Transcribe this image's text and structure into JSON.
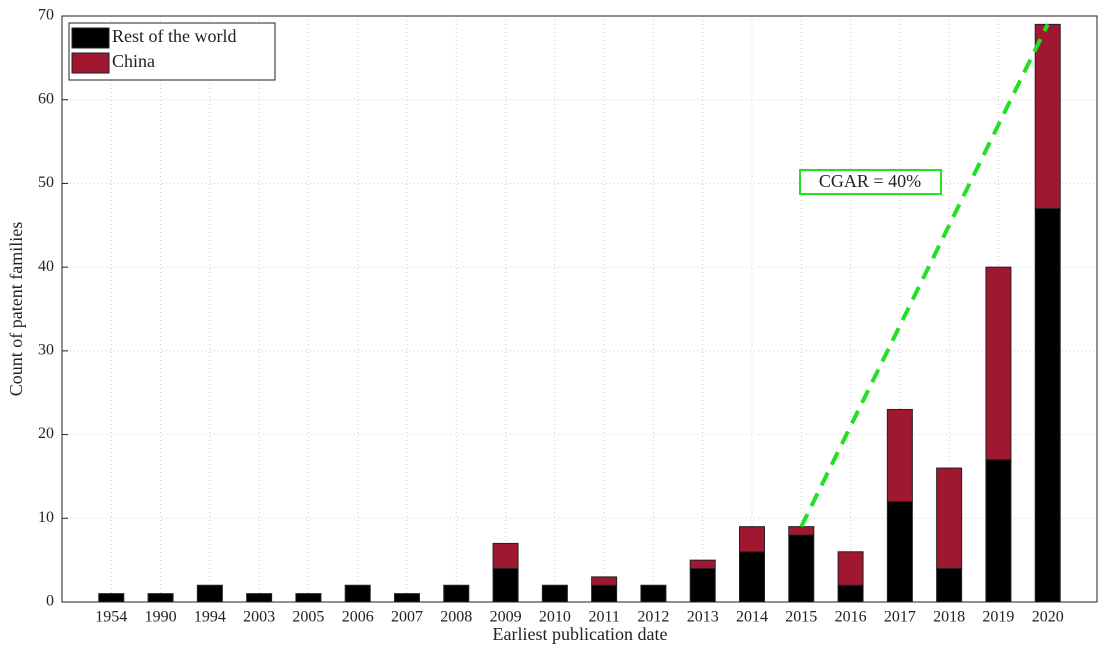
{
  "chart_data": {
    "type": "bar",
    "stacked": true,
    "x_label": "Earliest publication date",
    "y_label": "Count of patent families",
    "categories": [
      "1954",
      "1990",
      "1994",
      "2003",
      "2005",
      "2006",
      "2007",
      "2008",
      "2009",
      "2010",
      "2011",
      "2012",
      "2013",
      "2014",
      "2015",
      "2016",
      "2017",
      "2018",
      "2019",
      "2020"
    ],
    "series": [
      {
        "name": "Rest of the world",
        "color": "#000000",
        "values": [
          1,
          1,
          2,
          1,
          1,
          2,
          1,
          2,
          4,
          2,
          2,
          2,
          4,
          6,
          8,
          2,
          12,
          4,
          17,
          47
        ]
      },
      {
        "name": "China",
        "color": "#a01830",
        "values": [
          0,
          0,
          0,
          0,
          0,
          0,
          0,
          0,
          3,
          0,
          1,
          0,
          1,
          3,
          1,
          4,
          11,
          12,
          23,
          22
        ]
      }
    ],
    "ylim": [
      0,
      70
    ],
    "yticks": [
      0,
      10,
      20,
      30,
      40,
      50,
      60,
      70
    ],
    "grid": true,
    "legend": "top-left",
    "trend_line": {
      "x": [
        "2015",
        "2020"
      ],
      "values": [
        9,
        69
      ],
      "color": "#22e022"
    },
    "annotation": "CGAR = 40%"
  }
}
